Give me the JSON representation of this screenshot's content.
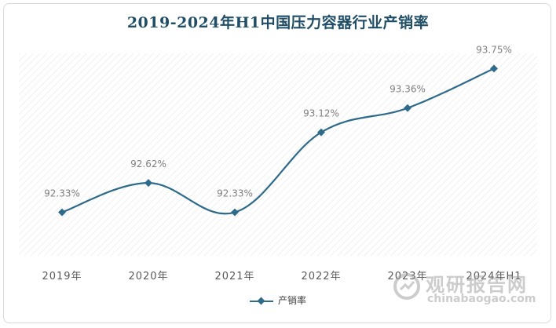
{
  "chart_data": {
    "type": "line",
    "title": "2019-2024年H1中国压力容器行业产销率",
    "categories": [
      "2019年",
      "2020年",
      "2021年",
      "2022年",
      "2023年",
      "2024年H1"
    ],
    "series": [
      {
        "name": "产销率",
        "values": [
          92.33,
          92.62,
          92.33,
          93.12,
          93.36,
          93.75
        ],
        "labels": [
          "92.33%",
          "92.62%",
          "92.33%",
          "93.12%",
          "93.36%",
          "93.75%"
        ],
        "color": "#2e6b8a"
      }
    ],
    "ylim": [
      91.9,
      93.9
    ],
    "grid": false,
    "legend": "bottom",
    "smooth": true,
    "plot_background": "hatched"
  },
  "watermark": {
    "cn": "观研报告网",
    "en": "chinabaogao.com"
  }
}
